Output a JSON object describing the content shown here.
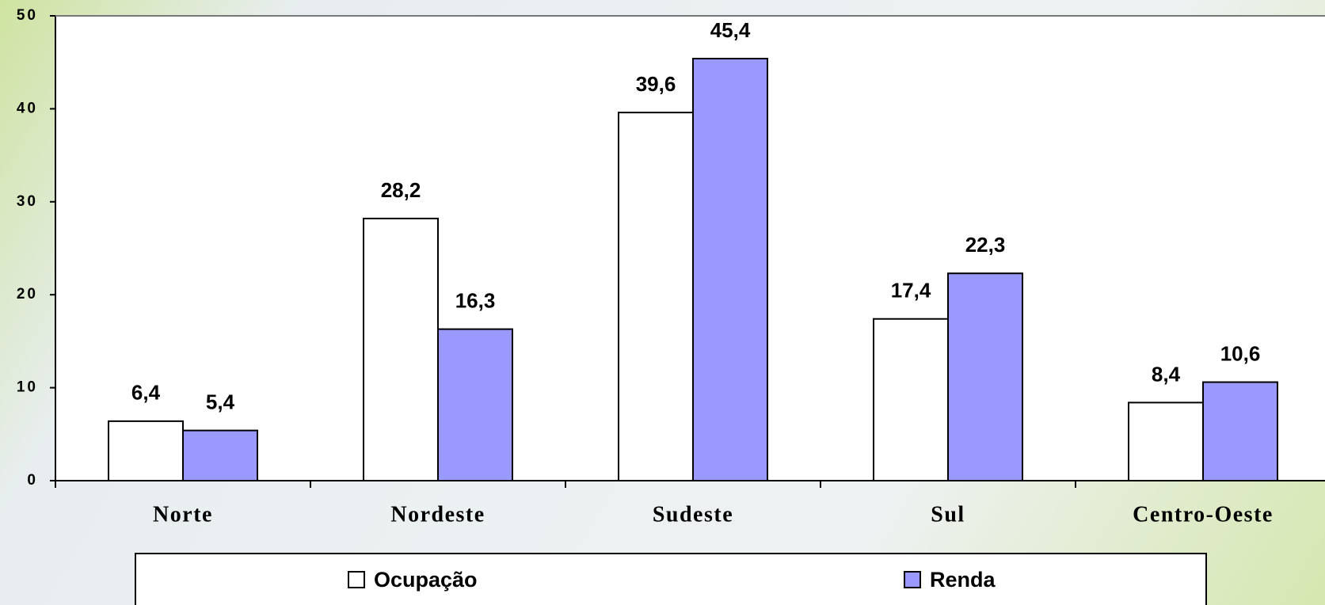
{
  "chart_data": {
    "type": "bar",
    "categories": [
      "Norte",
      "Nordeste",
      "Sudeste",
      "Sul",
      "Centro-Oeste"
    ],
    "series": [
      {
        "name": "Ocupação",
        "color": "#ffffff",
        "values": [
          6.4,
          28.2,
          39.6,
          17.4,
          8.4
        ],
        "value_labels": [
          "6,4",
          "28,2",
          "39,6",
          "17,4",
          "8,4"
        ]
      },
      {
        "name": "Renda",
        "color": "#9999ff",
        "values": [
          5.4,
          16.3,
          45.4,
          22.3,
          10.6
        ],
        "value_labels": [
          "5,4",
          "16,3",
          "45,4",
          "22,3",
          "10,6"
        ]
      }
    ],
    "ylim": [
      0,
      50
    ],
    "yticks": [
      0,
      10,
      20,
      30,
      40,
      50
    ],
    "legend": "bottom"
  }
}
